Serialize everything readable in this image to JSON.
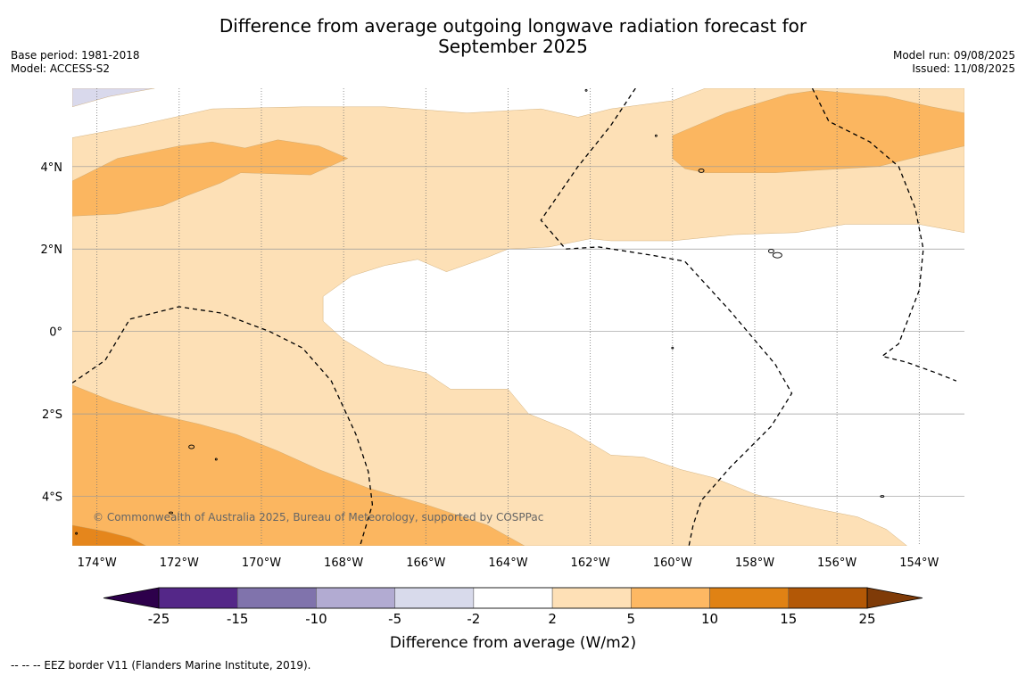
{
  "title": {
    "line1": "Difference from average outgoing longwave radiation forecast for",
    "line2": "September 2025"
  },
  "meta_left": {
    "base_period": "Base period: 1981-2018",
    "model": "Model: ACCESS-S2"
  },
  "meta_right": {
    "model_run": "Model run: 09/08/2025",
    "issued": "Issued: 11/08/2025"
  },
  "map": {
    "lon_range": [
      -174.6,
      -152.9
    ],
    "lat_range": [
      -5.2,
      5.9
    ],
    "lon_ticks": [
      {
        "value": -174,
        "label": "174°W"
      },
      {
        "value": -172,
        "label": "172°W"
      },
      {
        "value": -170,
        "label": "170°W"
      },
      {
        "value": -168,
        "label": "168°W"
      },
      {
        "value": -166,
        "label": "166°W"
      },
      {
        "value": -164,
        "label": "164°W"
      },
      {
        "value": -162,
        "label": "162°W"
      },
      {
        "value": -160,
        "label": "160°W"
      },
      {
        "value": -158,
        "label": "158°W"
      },
      {
        "value": -156,
        "label": "156°W"
      },
      {
        "value": -154,
        "label": "154°W"
      }
    ],
    "lat_ticks": [
      {
        "value": 4,
        "label": "4°N"
      },
      {
        "value": 2,
        "label": "2°N"
      },
      {
        "value": 0,
        "label": "0°"
      },
      {
        "value": -2,
        "label": "2°S"
      },
      {
        "value": -4,
        "label": "4°S"
      }
    ],
    "copyright": "© Commonwealth of Australia 2025, Bureau of Meteorology, supported by COSPPac",
    "colors": {
      "c_m5_m2": "#d9d9ec",
      "c_2_5": "#fde0b6",
      "c_5_10": "#fbb660",
      "c_10_15": "#e5861c",
      "grid": "#999999"
    },
    "contours": [
      {
        "level": "-5 to -2",
        "color_key": "c_m5_m2",
        "points": [
          [
            -174.6,
            5.45
          ],
          [
            -173.7,
            5.7
          ],
          [
            -172.6,
            5.9
          ],
          [
            -174.6,
            5.9
          ]
        ]
      },
      {
        "level": "2 to 5",
        "color_key": "c_2_5",
        "points": [
          [
            -174.6,
            4.7
          ],
          [
            -173.0,
            5.0
          ],
          [
            -171.2,
            5.4
          ],
          [
            -169.0,
            5.45
          ],
          [
            -167.0,
            5.45
          ],
          [
            -165.0,
            5.3
          ],
          [
            -163.2,
            5.4
          ],
          [
            -162.3,
            5.2
          ],
          [
            -161.5,
            5.4
          ],
          [
            -160.0,
            5.6
          ],
          [
            -159.2,
            5.9
          ],
          [
            -152.9,
            5.9
          ],
          [
            -152.9,
            2.4
          ],
          [
            -154.0,
            2.6
          ],
          [
            -155.8,
            2.6
          ],
          [
            -157.0,
            2.4
          ],
          [
            -158.5,
            2.35
          ],
          [
            -160.0,
            2.2
          ],
          [
            -161.5,
            2.2
          ],
          [
            -162.0,
            2.25
          ],
          [
            -163.0,
            2.05
          ],
          [
            -164.0,
            2.0
          ],
          [
            -164.5,
            1.8
          ],
          [
            -165.5,
            1.45
          ],
          [
            -166.2,
            1.75
          ],
          [
            -167.0,
            1.6
          ],
          [
            -167.8,
            1.35
          ],
          [
            -168.5,
            0.85
          ],
          [
            -168.5,
            0.25
          ],
          [
            -168.0,
            -0.2
          ],
          [
            -167.0,
            -0.8
          ],
          [
            -166.0,
            -1.0
          ],
          [
            -165.4,
            -1.4
          ],
          [
            -164.0,
            -1.4
          ],
          [
            -163.5,
            -2.0
          ],
          [
            -162.5,
            -2.4
          ],
          [
            -161.5,
            -3.0
          ],
          [
            -160.7,
            -3.05
          ],
          [
            -159.8,
            -3.35
          ],
          [
            -159.0,
            -3.55
          ],
          [
            -158.0,
            -3.95
          ],
          [
            -156.5,
            -4.3
          ],
          [
            -155.5,
            -4.5
          ],
          [
            -154.8,
            -4.8
          ],
          [
            -154.3,
            -5.2
          ],
          [
            -174.6,
            -5.2
          ]
        ]
      },
      {
        "level": "5 to 10",
        "color_key": "c_5_10",
        "points": [
          [
            -174.6,
            3.65
          ],
          [
            -173.5,
            4.2
          ],
          [
            -172.0,
            4.5
          ],
          [
            -171.2,
            4.6
          ],
          [
            -170.4,
            4.45
          ],
          [
            -169.6,
            4.65
          ],
          [
            -168.6,
            4.5
          ],
          [
            -167.9,
            4.2
          ],
          [
            -168.8,
            3.8
          ],
          [
            -170.5,
            3.85
          ],
          [
            -171.0,
            3.6
          ],
          [
            -171.8,
            3.3
          ],
          [
            -172.4,
            3.05
          ],
          [
            -173.5,
            2.85
          ],
          [
            -174.6,
            2.8
          ]
        ]
      },
      {
        "level": "5 to 10",
        "color_key": "c_5_10",
        "points": [
          [
            -160.0,
            4.75
          ],
          [
            -158.7,
            5.3
          ],
          [
            -157.2,
            5.75
          ],
          [
            -156.5,
            5.85
          ],
          [
            -154.8,
            5.7
          ],
          [
            -153.7,
            5.45
          ],
          [
            -152.9,
            5.3
          ],
          [
            -152.9,
            4.5
          ],
          [
            -154.0,
            4.25
          ],
          [
            -155.0,
            4.0
          ],
          [
            -156.7,
            3.9
          ],
          [
            -157.5,
            3.85
          ],
          [
            -159.2,
            3.85
          ],
          [
            -159.7,
            3.95
          ],
          [
            -160.0,
            4.2
          ]
        ]
      },
      {
        "level": "5 to 10",
        "color_key": "c_5_10",
        "points": [
          [
            -174.6,
            -1.3
          ],
          [
            -173.6,
            -1.7
          ],
          [
            -172.6,
            -2.0
          ],
          [
            -171.5,
            -2.25
          ],
          [
            -170.6,
            -2.5
          ],
          [
            -169.6,
            -2.9
          ],
          [
            -168.6,
            -3.35
          ],
          [
            -167.4,
            -3.8
          ],
          [
            -166.0,
            -4.2
          ],
          [
            -164.5,
            -4.7
          ],
          [
            -163.6,
            -5.2
          ],
          [
            -174.6,
            -5.2
          ]
        ]
      },
      {
        "level": "10 to 15",
        "color_key": "c_10_15",
        "points": [
          [
            -174.6,
            -4.7
          ],
          [
            -173.8,
            -4.85
          ],
          [
            -173.2,
            -5.0
          ],
          [
            -172.8,
            -5.2
          ],
          [
            -174.6,
            -5.2
          ]
        ]
      }
    ],
    "eez_lines": [
      [
        [
          -174.6,
          -1.25
        ],
        [
          -173.8,
          -0.7
        ],
        [
          -173.2,
          0.3
        ],
        [
          -172.0,
          0.6
        ],
        [
          -171.0,
          0.45
        ],
        [
          -169.8,
          0.0
        ],
        [
          -169.0,
          -0.4
        ],
        [
          -168.3,
          -1.2
        ],
        [
          -167.7,
          -2.5
        ],
        [
          -167.4,
          -3.4
        ],
        [
          -167.3,
          -4.2
        ],
        [
          -167.6,
          -5.2
        ]
      ],
      [
        [
          -160.9,
          5.9
        ],
        [
          -161.5,
          5.0
        ],
        [
          -162.3,
          4.0
        ],
        [
          -163.2,
          2.7
        ],
        [
          -162.6,
          2.0
        ],
        [
          -161.8,
          2.05
        ],
        [
          -160.5,
          1.85
        ],
        [
          -159.7,
          1.7
        ],
        [
          -158.6,
          0.5
        ],
        [
          -157.5,
          -0.8
        ],
        [
          -157.1,
          -1.5
        ],
        [
          -157.6,
          -2.3
        ],
        [
          -158.6,
          -3.3
        ],
        [
          -159.3,
          -4.1
        ],
        [
          -159.5,
          -4.7
        ],
        [
          -159.6,
          -5.2
        ]
      ],
      [
        [
          -156.6,
          5.9
        ],
        [
          -156.2,
          5.1
        ],
        [
          -155.2,
          4.6
        ],
        [
          -154.5,
          4.0
        ],
        [
          -154.1,
          3.0
        ],
        [
          -153.9,
          2.0
        ],
        [
          -154.0,
          1.0
        ],
        [
          -154.5,
          -0.3
        ],
        [
          -154.9,
          -0.6
        ],
        [
          -154.3,
          -0.75
        ],
        [
          -153.6,
          -1.0
        ],
        [
          -153.1,
          -1.2
        ]
      ]
    ],
    "islands": [
      {
        "lon": -171.7,
        "lat": -2.8,
        "rx": 3,
        "ry": 2
      },
      {
        "lon": -171.1,
        "lat": -3.1,
        "rx": 1,
        "ry": 1
      },
      {
        "lon": -172.2,
        "lat": -4.4,
        "rx": 2,
        "ry": 1
      },
      {
        "lon": -174.5,
        "lat": -4.9,
        "rx": 1,
        "ry": 1
      },
      {
        "lon": -159.3,
        "lat": 3.9,
        "rx": 3,
        "ry": 2
      },
      {
        "lon": -157.45,
        "lat": 1.85,
        "rx": 5,
        "ry": 3
      },
      {
        "lon": -157.6,
        "lat": 1.95,
        "rx": 3,
        "ry": 2
      },
      {
        "lon": -162.1,
        "lat": 5.85,
        "rx": 1,
        "ry": 1
      },
      {
        "lon": -160.4,
        "lat": 4.75,
        "rx": 1,
        "ry": 1
      },
      {
        "lon": -160.0,
        "lat": -0.4,
        "rx": 1,
        "ry": 1
      },
      {
        "lon": -154.9,
        "lat": -4.0,
        "rx": 2,
        "ry": 1
      }
    ]
  },
  "colorbar": {
    "title": "Difference from average (W/m2)",
    "low_extend_color": "#2d004b",
    "high_extend_color": "#7f3b08",
    "bins": [
      {
        "from": -25,
        "to": -15,
        "color": "#542788"
      },
      {
        "from": -15,
        "to": -10,
        "color": "#8073ac"
      },
      {
        "from": -10,
        "to": -5,
        "color": "#b2abd2"
      },
      {
        "from": -5,
        "to": -2,
        "color": "#d8daeb"
      },
      {
        "from": -2,
        "to": 2,
        "color": "#ffffff"
      },
      {
        "from": 2,
        "to": 5,
        "color": "#fee0b6"
      },
      {
        "from": 5,
        "to": 10,
        "color": "#fdb863"
      },
      {
        "from": 10,
        "to": 15,
        "color": "#e08214"
      },
      {
        "from": 15,
        "to": 25,
        "color": "#b35806"
      }
    ],
    "tick_labels": [
      "-25",
      "-15",
      "-10",
      "-5",
      "-2",
      "2",
      "5",
      "10",
      "15",
      "25"
    ]
  },
  "footer": "--  --  -- EEZ border V11 (Flanders Marine Institute, 2019)."
}
